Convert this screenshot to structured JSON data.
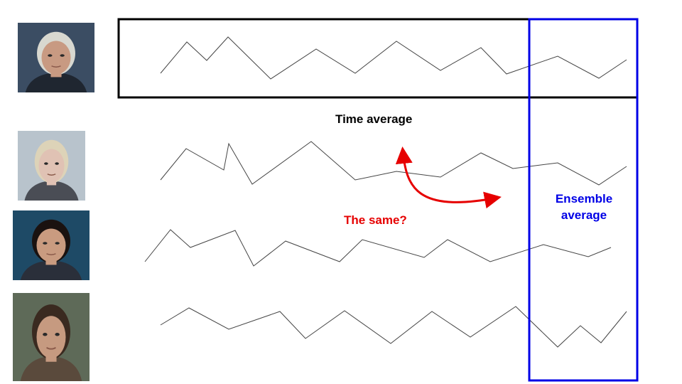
{
  "labels": {
    "time_average": "Time average",
    "ensemble_line1": "Ensemble",
    "ensemble_line2": "average",
    "question": "The same?"
  },
  "colors": {
    "time_box": "#000000",
    "ensemble_box": "#0000e6",
    "question": "#e60000",
    "trace": "#444444"
  },
  "portraits": [
    {
      "name": "portrait-white-haired-man",
      "bg": "#3b4d63",
      "skin": "#c89a82",
      "hair": "#d8d8d0",
      "shirt": "#1f2630"
    },
    {
      "name": "portrait-blonde-girl",
      "bg": "#b8c3cc",
      "skin": "#e0c2b4",
      "hair": "#ddd3b8",
      "shirt": "#4a4d55"
    },
    {
      "name": "portrait-dark-haired-woman",
      "bg": "#1e4a66",
      "skin": "#c99b80",
      "hair": "#1a1210",
      "shirt": "#2a2f3a"
    },
    {
      "name": "portrait-young-man",
      "bg": "#5e6a58",
      "skin": "#c69a80",
      "hair": "#3a2a20",
      "shirt": "#5a4a3c"
    }
  ]
}
